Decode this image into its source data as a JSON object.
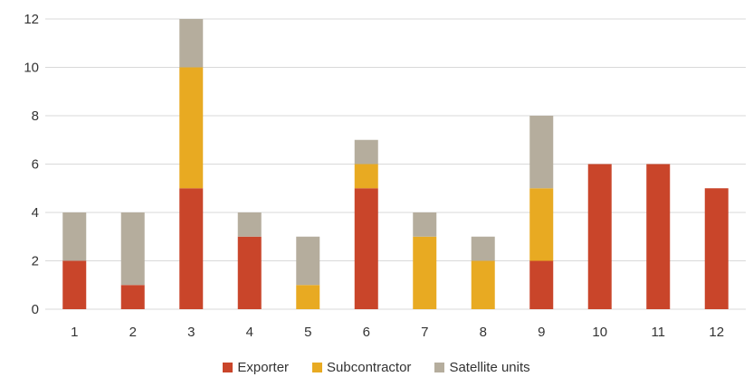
{
  "chart_data": {
    "type": "bar",
    "stacked": true,
    "categories": [
      "1",
      "2",
      "3",
      "4",
      "5",
      "6",
      "7",
      "8",
      "9",
      "10",
      "11",
      "12"
    ],
    "series": [
      {
        "name": "Exporter",
        "color": "#C9452A",
        "values": [
          2,
          1,
          5,
          3,
          0,
          5,
          0,
          0,
          2,
          6,
          6,
          5
        ]
      },
      {
        "name": "Subcontractor",
        "color": "#E8AA22",
        "values": [
          0,
          0,
          5,
          0,
          1,
          1,
          3,
          2,
          3,
          0,
          0,
          0
        ]
      },
      {
        "name": "Satellite units",
        "color": "#B5AD9D",
        "values": [
          2,
          3,
          2,
          1,
          2,
          1,
          1,
          1,
          3,
          0,
          0,
          0
        ]
      }
    ],
    "ylim": [
      0,
      12
    ],
    "yticks": [
      "0",
      "2",
      "4",
      "6",
      "8",
      "10",
      "12"
    ],
    "grid": true,
    "legend_position": "bottom",
    "title": "",
    "xlabel": "",
    "ylabel": ""
  }
}
